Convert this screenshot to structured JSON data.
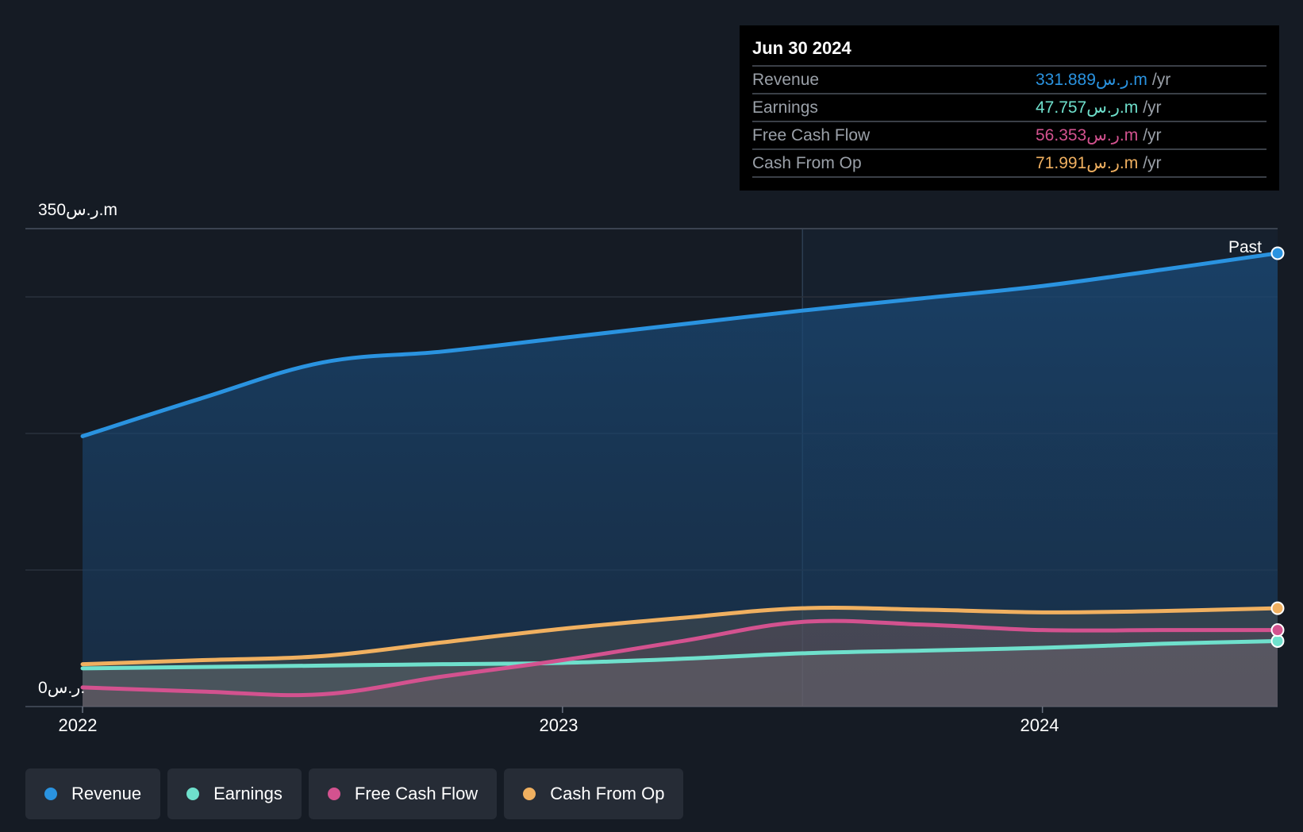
{
  "chart_data": {
    "type": "area",
    "y_axis": {
      "top_label": "350ر.س.m",
      "bottom_label": "0ر.س.",
      "ylim": [
        0,
        350
      ],
      "gridlines": true
    },
    "x_axis": {
      "tick_labels": [
        "2022",
        "2023",
        "2024"
      ],
      "xlim": [
        2021.99,
        2024.49
      ]
    },
    "past_label": "Past",
    "highlight_start": 2023.5,
    "series": [
      {
        "name": "Revenue",
        "color": "#2a93e0",
        "points": [
          [
            2022.0,
            198
          ],
          [
            2022.25,
            226
          ],
          [
            2022.5,
            252
          ],
          [
            2022.75,
            260
          ],
          [
            2023.0,
            270
          ],
          [
            2023.25,
            280
          ],
          [
            2023.5,
            290
          ],
          [
            2023.75,
            299
          ],
          [
            2024.0,
            308
          ],
          [
            2024.25,
            320
          ],
          [
            2024.49,
            332
          ]
        ]
      },
      {
        "name": "Earnings",
        "color": "#6fe0cc",
        "points": [
          [
            2022.0,
            28
          ],
          [
            2022.25,
            29
          ],
          [
            2022.5,
            30
          ],
          [
            2022.75,
            31
          ],
          [
            2023.0,
            32
          ],
          [
            2023.25,
            35
          ],
          [
            2023.5,
            39
          ],
          [
            2023.75,
            41
          ],
          [
            2024.0,
            43
          ],
          [
            2024.25,
            46
          ],
          [
            2024.49,
            48
          ]
        ]
      },
      {
        "name": "Free Cash Flow",
        "color": "#d3528f",
        "points": [
          [
            2022.0,
            14
          ],
          [
            2022.25,
            11
          ],
          [
            2022.5,
            9
          ],
          [
            2022.75,
            22
          ],
          [
            2023.0,
            34
          ],
          [
            2023.25,
            48
          ],
          [
            2023.5,
            62
          ],
          [
            2023.75,
            60
          ],
          [
            2024.0,
            56
          ],
          [
            2024.25,
            56
          ],
          [
            2024.49,
            56
          ]
        ]
      },
      {
        "name": "Cash From Op",
        "color": "#f0b060",
        "points": [
          [
            2022.0,
            31
          ],
          [
            2022.25,
            34
          ],
          [
            2022.5,
            37
          ],
          [
            2022.75,
            47
          ],
          [
            2023.0,
            57
          ],
          [
            2023.25,
            65
          ],
          [
            2023.5,
            72
          ],
          [
            2023.75,
            71
          ],
          [
            2024.0,
            69
          ],
          [
            2024.25,
            70
          ],
          [
            2024.49,
            72
          ]
        ]
      }
    ]
  },
  "tooltip": {
    "date": "Jun 30 2024",
    "rows": [
      {
        "label": "Revenue",
        "value": "331.889ر.س.m",
        "unit": "/yr",
        "color": "#2a93e0"
      },
      {
        "label": "Earnings",
        "value": "47.757ر.س.m",
        "unit": "/yr",
        "color": "#6fe0cc"
      },
      {
        "label": "Free Cash Flow",
        "value": "56.353ر.س.m",
        "unit": "/yr",
        "color": "#d3528f"
      },
      {
        "label": "Cash From Op",
        "value": "71.991ر.س.m",
        "unit": "/yr",
        "color": "#f0b060"
      }
    ]
  },
  "legend": [
    {
      "label": "Revenue",
      "color": "#2a93e0"
    },
    {
      "label": "Earnings",
      "color": "#6fe0cc"
    },
    {
      "label": "Free Cash Flow",
      "color": "#d3528f"
    },
    {
      "label": "Cash From Op",
      "color": "#f0b060"
    }
  ]
}
